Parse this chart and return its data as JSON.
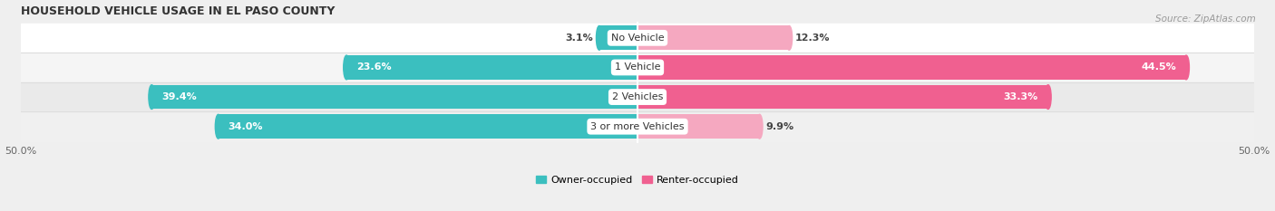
{
  "title": "HOUSEHOLD VEHICLE USAGE IN EL PASO COUNTY",
  "source": "Source: ZipAtlas.com",
  "categories": [
    "No Vehicle",
    "1 Vehicle",
    "2 Vehicles",
    "3 or more Vehicles"
  ],
  "owner_values": [
    3.1,
    23.6,
    39.4,
    34.0
  ],
  "renter_values": [
    12.3,
    44.5,
    33.3,
    9.9
  ],
  "owner_color": "#3BBFBF",
  "renter_color_dark": "#F06090",
  "renter_color_light": "#F5A8C0",
  "renter_threshold": 20,
  "bg_color": "#EFEFEF",
  "row_colors": [
    "#FFFFFF",
    "#F5F5F5",
    "#EAEAEA",
    "#F0F0F0"
  ],
  "separator_color": "#DDDDDD",
  "xlim": [
    -50,
    50
  ],
  "title_fontsize": 9,
  "source_fontsize": 7.5,
  "label_fontsize": 8,
  "cat_fontsize": 8,
  "bar_height": 0.82,
  "owner_label_threshold": 8,
  "renter_label_threshold": 15
}
